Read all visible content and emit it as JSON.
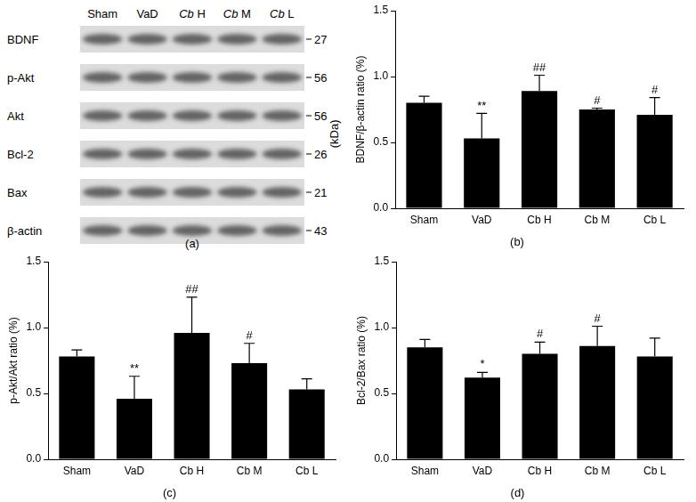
{
  "blot": {
    "panel_label": "(a)",
    "unit": "(kDa)",
    "lanes": [
      "Sham",
      "VaD",
      "Cb H",
      "Cb M",
      "Cb L"
    ],
    "rows": [
      {
        "name": "BDNF",
        "kda": 27
      },
      {
        "name": "p-Akt",
        "kda": 56
      },
      {
        "name": "Akt",
        "kda": 56
      },
      {
        "name": "Bcl-2",
        "kda": 26
      },
      {
        "name": "Bax",
        "kda": 21
      },
      {
        "name": "β-actin",
        "kda": 43
      }
    ]
  },
  "chart_data": [
    {
      "type": "bar",
      "panel_label": "(b)",
      "ylabel": "BDNF/β-actin ratio (%)",
      "categories": [
        "Sham",
        "VaD",
        "Cb H",
        "Cb M",
        "Cb L"
      ],
      "values": [
        0.8,
        0.53,
        0.89,
        0.75,
        0.71
      ],
      "errors": [
        0.05,
        0.19,
        0.12,
        0.01,
        0.13
      ],
      "significance": [
        null,
        "**",
        "##",
        "#",
        "#"
      ],
      "color": "#000000",
      "ylim": [
        0,
        1.5
      ],
      "yticks": [
        {
          "value": 0,
          "label": "0.0"
        },
        0.5,
        {
          "value": 1,
          "label": "1.0"
        },
        1.5
      ],
      "grid": false
    },
    {
      "type": "bar",
      "panel_label": "(c)",
      "ylabel": "p-Akt/Akt ratio (%)",
      "categories": [
        "Sham",
        "VaD",
        "Cb H",
        "Cb M",
        "Cb L"
      ],
      "values": [
        0.78,
        0.46,
        0.96,
        0.73,
        0.53
      ],
      "errors": [
        0.05,
        0.17,
        0.27,
        0.15,
        0.08
      ],
      "significance": [
        null,
        "**",
        "##",
        "#",
        null
      ],
      "color": "#000000",
      "ylim": [
        0,
        1.5
      ],
      "yticks": [
        {
          "value": 0,
          "label": "0.0"
        },
        0.5,
        {
          "value": 1,
          "label": "1.0"
        },
        1.5
      ],
      "grid": false
    },
    {
      "type": "bar",
      "panel_label": "(d)",
      "ylabel": "Bcl-2/Bax ratio (%)",
      "categories": [
        "Sham",
        "VaD",
        "Cb H",
        "Cb M",
        "Cb L"
      ],
      "values": [
        0.85,
        0.62,
        0.8,
        0.86,
        0.78
      ],
      "errors": [
        0.06,
        0.04,
        0.09,
        0.15,
        0.14
      ],
      "significance": [
        null,
        "*",
        "#",
        "#",
        null
      ],
      "color": "#000000",
      "ylim": [
        0,
        1.5
      ],
      "yticks": [
        {
          "value": 0,
          "label": "0.0"
        },
        0.5,
        {
          "value": 1,
          "label": "1.0"
        },
        1.5
      ],
      "grid": false
    }
  ]
}
